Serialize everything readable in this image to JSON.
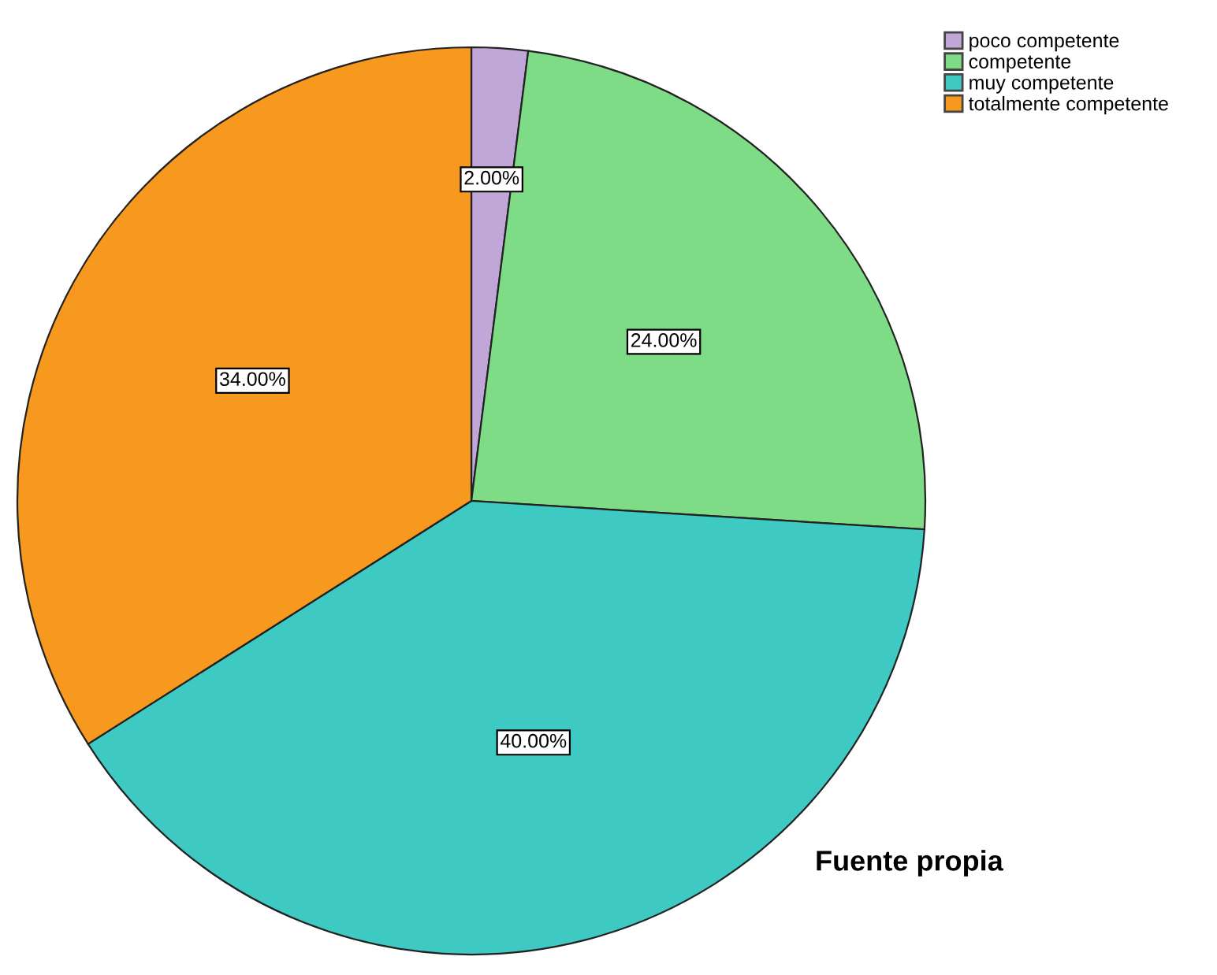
{
  "chart_data": {
    "type": "pie",
    "categories": [
      "poco competente",
      "competente",
      "muy competente",
      "totalmente competente"
    ],
    "values": [
      2,
      24,
      40,
      34
    ],
    "colors": [
      "#c1a6d8",
      "#7fdc86",
      "#3ec9c2",
      "#f7991f"
    ],
    "value_labels": [
      "2.00%",
      "24.00%",
      "40.00%",
      "34.00%"
    ],
    "legend": "top right",
    "annotations": [
      "Fuente propia"
    ]
  }
}
